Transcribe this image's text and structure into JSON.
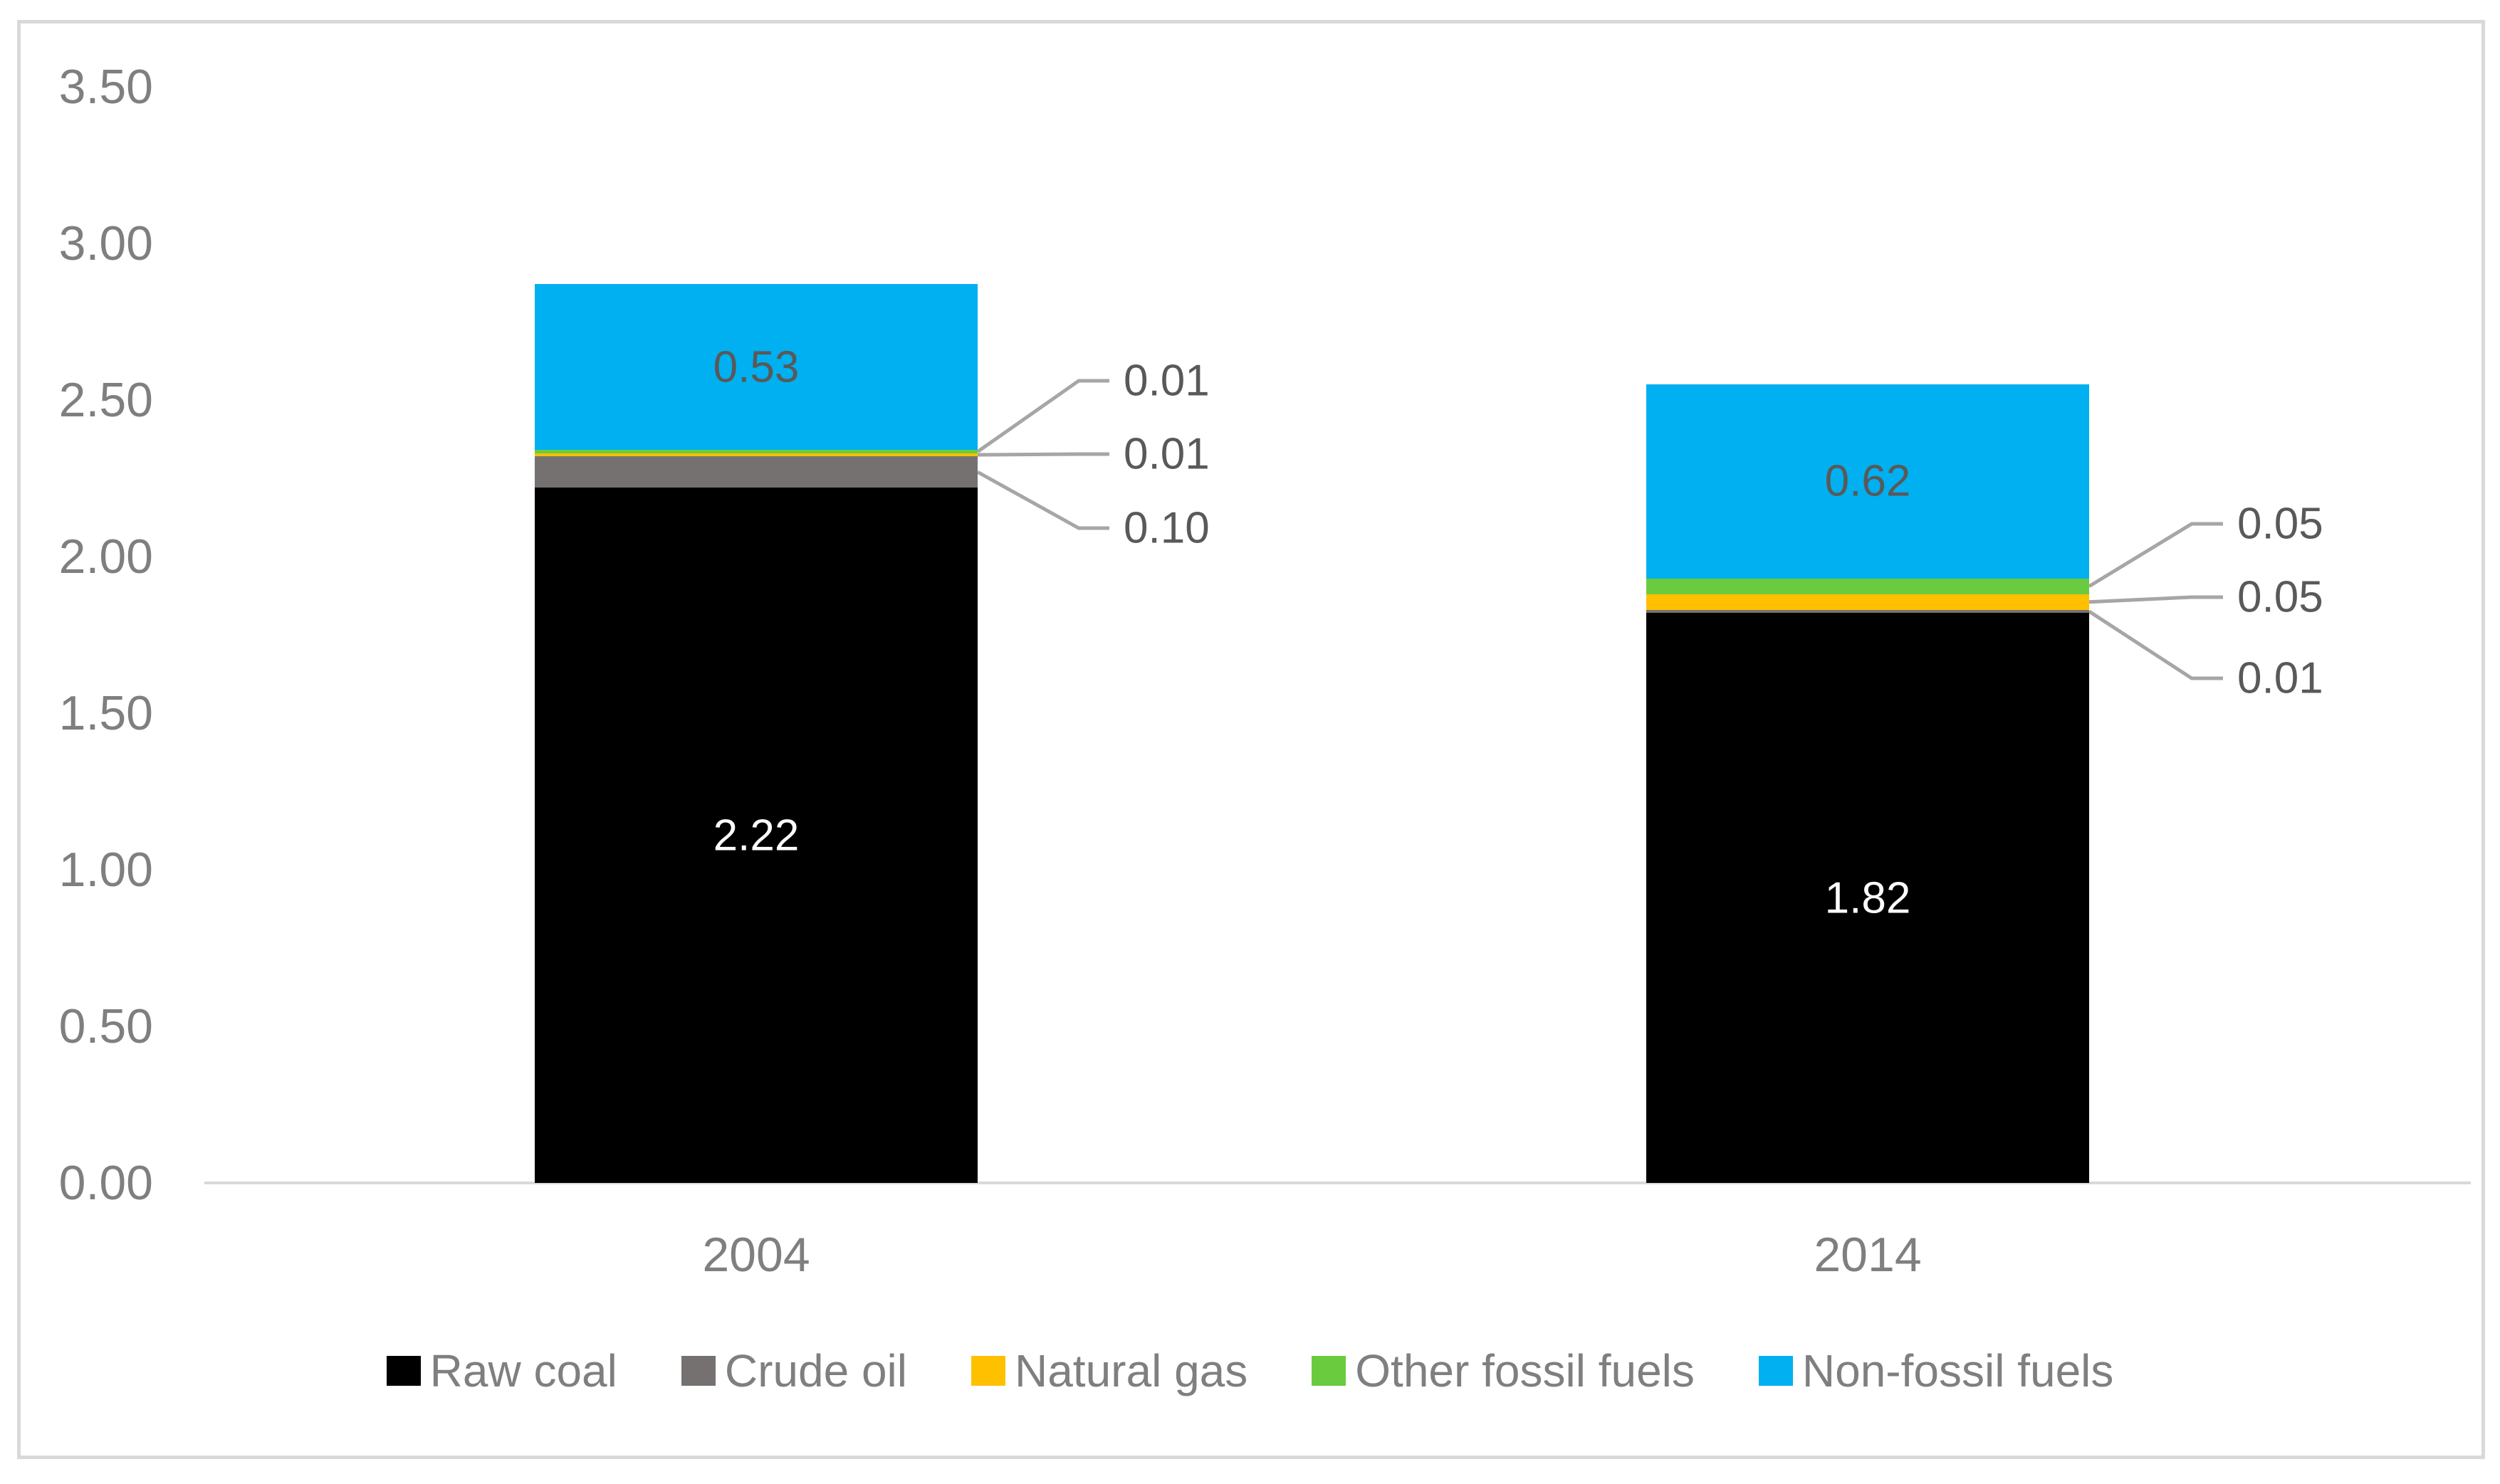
{
  "chart_data": {
    "type": "bar",
    "stacked": true,
    "title": "",
    "xlabel": "",
    "ylabel": "",
    "categories": [
      "2004",
      "2014"
    ],
    "series": [
      {
        "name": "Raw coal",
        "color": "#000000",
        "values": [
          2.22,
          1.82
        ],
        "labels": [
          "2.22",
          "1.82"
        ],
        "label_mode": "inside-light"
      },
      {
        "name": "Crude oil",
        "color": "#767171",
        "values": [
          0.1,
          0.01
        ],
        "labels": [
          "0.10",
          "0.01"
        ],
        "label_mode": "callout"
      },
      {
        "name": "Natural gas",
        "color": "#FFC000",
        "values": [
          0.01,
          0.05
        ],
        "labels": [
          "0.01",
          "0.05"
        ],
        "label_mode": "callout"
      },
      {
        "name": "Other fossil fuels",
        "color": "#6BCB3F",
        "values": [
          0.01,
          0.05
        ],
        "labels": [
          "0.01",
          "0.05"
        ],
        "label_mode": "callout"
      },
      {
        "name": "Non-fossil fuels",
        "color": "#00B0F0",
        "values": [
          0.53,
          0.62
        ],
        "labels": [
          "0.53",
          "0.62"
        ],
        "label_mode": "inside-dark"
      }
    ],
    "callout_order_top_to_bottom": [
      3,
      2,
      1
    ],
    "y_ticks": [
      "0.00",
      "0.50",
      "1.00",
      "1.50",
      "2.00",
      "2.50",
      "3.00",
      "3.50"
    ],
    "ylim": [
      0,
      3.5
    ],
    "grid": false,
    "legend_position": "bottom",
    "legend": [
      "Raw coal",
      "Crude oil",
      "Natural gas",
      "Other fossil fuels",
      "Non-fossil fuels"
    ],
    "colors": {
      "chart_border": "#D9D9D9",
      "axis_line": "#D9D9D9",
      "leader_line": "#A6A6A6",
      "axis_text": "#7F7F7F",
      "legend_text": "#7F7F7F",
      "data_label_dark": "#595959",
      "data_label_light": "#FFFFFF"
    }
  }
}
